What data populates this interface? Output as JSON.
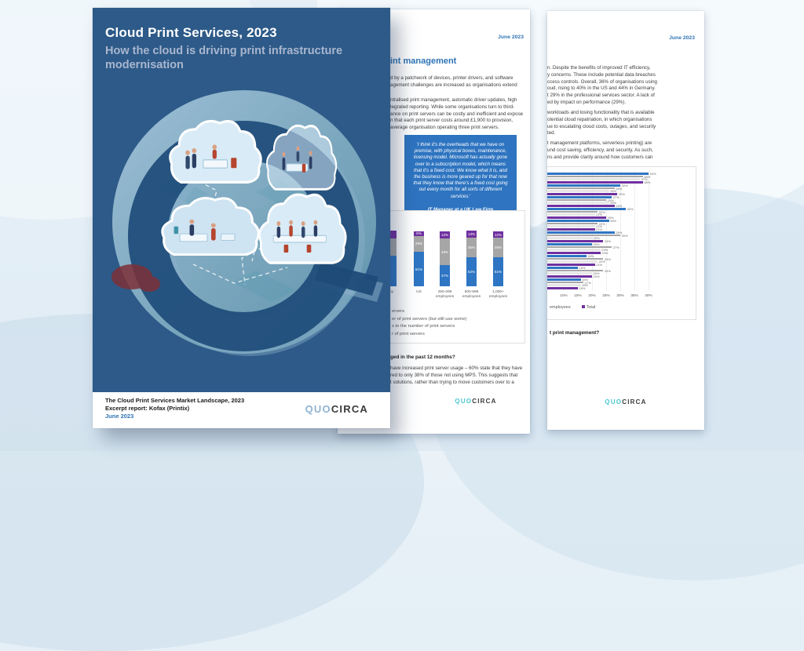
{
  "cover": {
    "title": "Cloud Print Services, 2023",
    "subtitle": "How the cloud is driving print infrastructure modernisation",
    "footer_line1": "The Cloud Print Services Market Landscape, 2023",
    "footer_line2": "Excerpt report: Kofax (Printix)",
    "footer_line3": "June 2023",
    "logo_quo": "QUO",
    "logo_circa": "CIRCA",
    "colors": {
      "bg": "#2d5a88",
      "subtitle": "#a9b6cf",
      "q_shape": "#1d4b78"
    }
  },
  "page2": {
    "date": "June 2023",
    "heading_fragment": "int management",
    "para1_lines": [
      "d by a patchwork of devices, printer drivers, and software",
      "agement challenges are increased as organisations extend"
    ],
    "para2_lines": [
      "ntralised print management, automatic driver updates, high",
      "tegrated reporting. While some organisations turn to third-",
      "ance on print servers can be costly and inefficient and expose",
      "n that each print server costs around £1,900 to provision,",
      "average organisation operating three print servers."
    ],
    "quote_text": "'I think it's the overheads that we have on premise, with physical boxes, maintenance, licensing model. Microsoft has actually gone over to a subscription model, which means that it's a fixed cost. We know what it is, and the business is more geared up for that now that they know that there's a fixed cost going out every month for all sorts of different services.'",
    "quote_attribution": "IT Manager at a UK Law Firm",
    "chart": {
      "colors": {
        "blue": "#2e75c3",
        "gray": "#a6a6a6",
        "purple": "#7030a0"
      },
      "columns": [
        {
          "label_lines": [
            "ny"
          ],
          "blue": 55,
          "gray": 31,
          "purple": 14,
          "labels": [
            "",
            "",
            ""
          ]
        },
        {
          "label_lines": [
            "US"
          ],
          "blue": 61,
          "gray": 29,
          "purple": 8,
          "labels": [
            "61%",
            "29%",
            "8%"
          ]
        },
        {
          "label_lines": [
            "250-499",
            "employees"
          ],
          "blue": 37,
          "gray": 48,
          "purple": 13,
          "labels": [
            "37%",
            "48%",
            "13%"
          ]
        },
        {
          "label_lines": [
            "500-999",
            "employees"
          ],
          "blue": 52,
          "gray": 35,
          "purple": 13,
          "labels": [
            "52%",
            "35%",
            "13%"
          ]
        },
        {
          "label_lines": [
            "1,000+",
            "employees"
          ],
          "blue": 51,
          "gray": 35,
          "purple": 12,
          "labels": [
            "51%",
            "35%",
            "12%"
          ]
        }
      ],
      "legend_fragments": [
        "ervers",
        "er of print servers (but still use some)",
        "s to the number of print servers",
        "r of print servers"
      ]
    },
    "question_fragment": "ged in the past 12 months?",
    "para3_lines": [
      "have increased print server usage – 60% state that they have",
      "red to only 38% of those not using MPS. This suggests that",
      "t solutions, rather than trying to move customers over to a"
    ],
    "logo_quo": "QUO",
    "logo_circa": "CIRCA"
  },
  "page3": {
    "date": "June 2023",
    "para1_lines": [
      "n. Despite the benefits of improved IT efficiency,",
      "y concerns. These include potential data breaches",
      "ccess controls. Overall, 36% of organisations using",
      "oud, rising to 40% in the US and 44% in Germany.",
      "t 29% in the professional services sector. A lack of",
      "ed by impact on performance (29%)."
    ],
    "para2_lines": [
      "workloads and losing functionality that is available",
      "otential cloud repatriation, in which organisations",
      "ue to escalating cloud costs, outages, and security",
      "ted."
    ],
    "para3_lines": [
      "t management platforms, serverless printing) are",
      "und cost saving, efficiency, and security. As such,",
      "ns and provide clarity around how customers can"
    ],
    "chart": {
      "series_colors": [
        "#2e75c3",
        "#a6a6a6",
        "#e6e6e6",
        "#7030a0"
      ],
      "tick_values": [
        10,
        15,
        20,
        25,
        30,
        35,
        40
      ],
      "x_ticks": [
        "10%",
        "15%",
        "20%",
        "25%",
        "30%",
        "35%",
        "40%"
      ],
      "groups": [
        [
          40,
          38,
          37,
          38
        ],
        [
          30,
          28,
          26,
          29
        ],
        [
          27,
          25,
          26,
          28
        ],
        [
          32,
          22,
          21,
          25
        ],
        [
          26,
          22,
          21,
          21
        ],
        [
          28,
          30,
          20,
          24
        ],
        [
          20,
          27,
          23,
          23
        ],
        [
          18,
          24,
          22,
          21
        ],
        [
          15,
          24,
          20,
          20
        ],
        [
          16,
          17,
          16,
          15
        ]
      ],
      "legend_fragment": "employees",
      "legend_total": "Total"
    },
    "caption_fragment": "t print management?",
    "logo_quo": "QUO",
    "logo_circa": "CIRCA"
  },
  "chart_data": [
    {
      "type": "bar",
      "variant": "stacked-column",
      "location": "middle-page",
      "categories": [
        "…ny (partially occluded)",
        "US",
        "250-499 employees",
        "500-999 employees",
        "1,000+ employees"
      ],
      "series": [
        {
          "name": "bottom segment (blue)",
          "values": [
            null,
            61,
            37,
            52,
            51
          ]
        },
        {
          "name": "middle segment (gray)",
          "values": [
            null,
            29,
            48,
            35,
            35
          ]
        },
        {
          "name": "top segment (purple)",
          "values": [
            null,
            8,
            13,
            13,
            12
          ]
        }
      ],
      "unit": "%",
      "ylim": [
        0,
        100
      ],
      "legend_fragments_visible": [
        "ervers",
        "er of print servers (but still use some)",
        "s to the number of print servers",
        "r of print servers"
      ]
    },
    {
      "type": "bar",
      "variant": "grouped-horizontal",
      "location": "right-page",
      "x_ticks_visible": [
        10,
        15,
        20,
        25,
        30,
        35,
        40
      ],
      "unit": "%",
      "categories_occluded": true,
      "legend_visible": [
        "employees",
        "Total"
      ],
      "series_order_by_color": [
        "blue",
        "gray",
        "light-gray",
        "purple (Total)"
      ],
      "groups_estimated": [
        [
          40,
          38,
          37,
          38
        ],
        [
          30,
          28,
          26,
          29
        ],
        [
          27,
          25,
          26,
          28
        ],
        [
          32,
          22,
          21,
          25
        ],
        [
          26,
          22,
          21,
          21
        ],
        [
          28,
          30,
          20,
          24
        ],
        [
          20,
          27,
          23,
          23
        ],
        [
          18,
          24,
          22,
          21
        ],
        [
          15,
          24,
          20,
          20
        ],
        [
          16,
          17,
          16,
          15
        ]
      ]
    }
  ]
}
